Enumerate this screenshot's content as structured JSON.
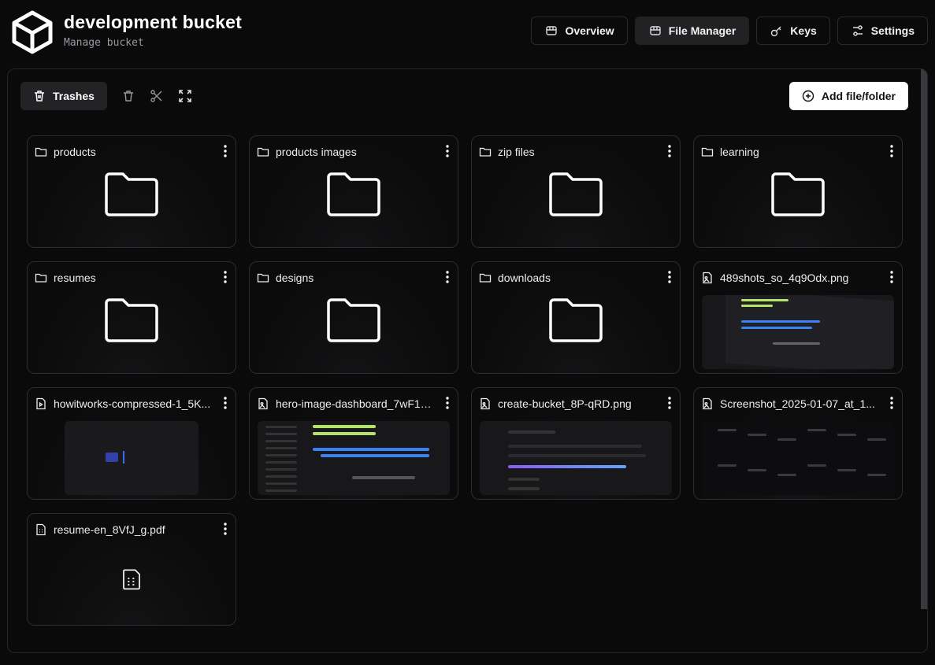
{
  "header": {
    "title": "development bucket",
    "subtitle": "Manage bucket",
    "logo_icon": "cube-icon"
  },
  "nav": [
    {
      "label": "Overview",
      "icon": "package-icon",
      "active": false
    },
    {
      "label": "File Manager",
      "icon": "package-icon",
      "active": true
    },
    {
      "label": "Keys",
      "icon": "key-icon",
      "active": false
    },
    {
      "label": "Settings",
      "icon": "sliders-icon",
      "active": false
    }
  ],
  "toolbar": {
    "trashes_label": "Trashes",
    "add_label": "Add file/folder"
  },
  "items": [
    {
      "name": "products",
      "type": "folder"
    },
    {
      "name": "products images",
      "type": "folder"
    },
    {
      "name": "zip files",
      "type": "folder"
    },
    {
      "name": "learning",
      "type": "folder"
    },
    {
      "name": "resumes",
      "type": "folder"
    },
    {
      "name": "designs",
      "type": "folder"
    },
    {
      "name": "downloads",
      "type": "folder"
    },
    {
      "name": "489shots_so_4q9Odx.png",
      "type": "image",
      "thumb": "dashboard"
    },
    {
      "name": "howitworks-compressed-1_5K...",
      "type": "video",
      "thumb": "video"
    },
    {
      "name": "hero-image-dashboard_7wF1G...",
      "type": "image",
      "thumb": "gantt"
    },
    {
      "name": "create-bucket_8P-qRD.png",
      "type": "image",
      "thumb": "form"
    },
    {
      "name": "Screenshot_2025-01-07_at_1...",
      "type": "image",
      "thumb": "nodes"
    },
    {
      "name": "resume-en_8VfJ_g.pdf",
      "type": "pdf"
    }
  ],
  "colors": {
    "background": "#0a0a0b",
    "active_tab": "#222225",
    "accent_green": "#b5e46a",
    "accent_blue": "#3b82f6"
  }
}
